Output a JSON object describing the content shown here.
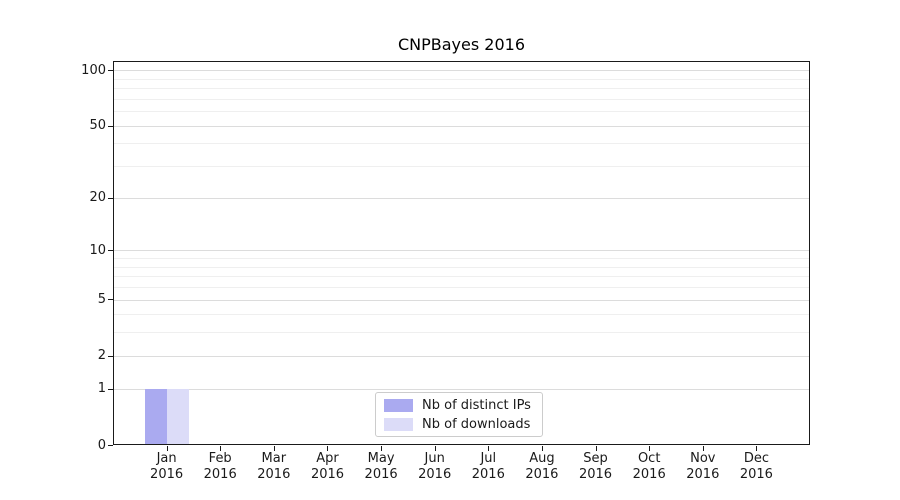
{
  "chart_data": {
    "type": "bar",
    "title": "CNPBayes 2016",
    "categories": [
      "Jan",
      "Feb",
      "Mar",
      "Apr",
      "May",
      "Jun",
      "Jul",
      "Aug",
      "Sep",
      "Oct",
      "Nov",
      "Dec"
    ],
    "tick_label_year": "2016",
    "series": [
      {
        "name": "Nb of distinct IPs",
        "color": "#aaaaf0",
        "values": [
          1,
          0,
          0,
          0,
          0,
          0,
          0,
          0,
          0,
          0,
          0,
          0
        ]
      },
      {
        "name": "Nb of downloads",
        "color": "#dcdcf8",
        "values": [
          1,
          0,
          0,
          0,
          0,
          0,
          0,
          0,
          0,
          0,
          0,
          0
        ]
      }
    ],
    "xlabel": "",
    "ylabel": "",
    "y_scale": "log1p",
    "y_major_ticks": [
      0,
      1,
      2,
      5,
      10,
      20,
      50,
      100
    ],
    "y_minor_ticks": [
      3,
      4,
      6,
      7,
      8,
      9,
      30,
      40,
      60,
      70,
      80,
      90
    ],
    "ylim": [
      0,
      112
    ],
    "grid": "horizontal",
    "legend_position": "lower center"
  },
  "colors": {
    "major_grid": "#dcdcdc",
    "minor_grid": "#efefef",
    "axis": "#1a1a1a",
    "text": "#1a1a1a",
    "background": "#ffffff",
    "legend_border": "#cccccc"
  }
}
